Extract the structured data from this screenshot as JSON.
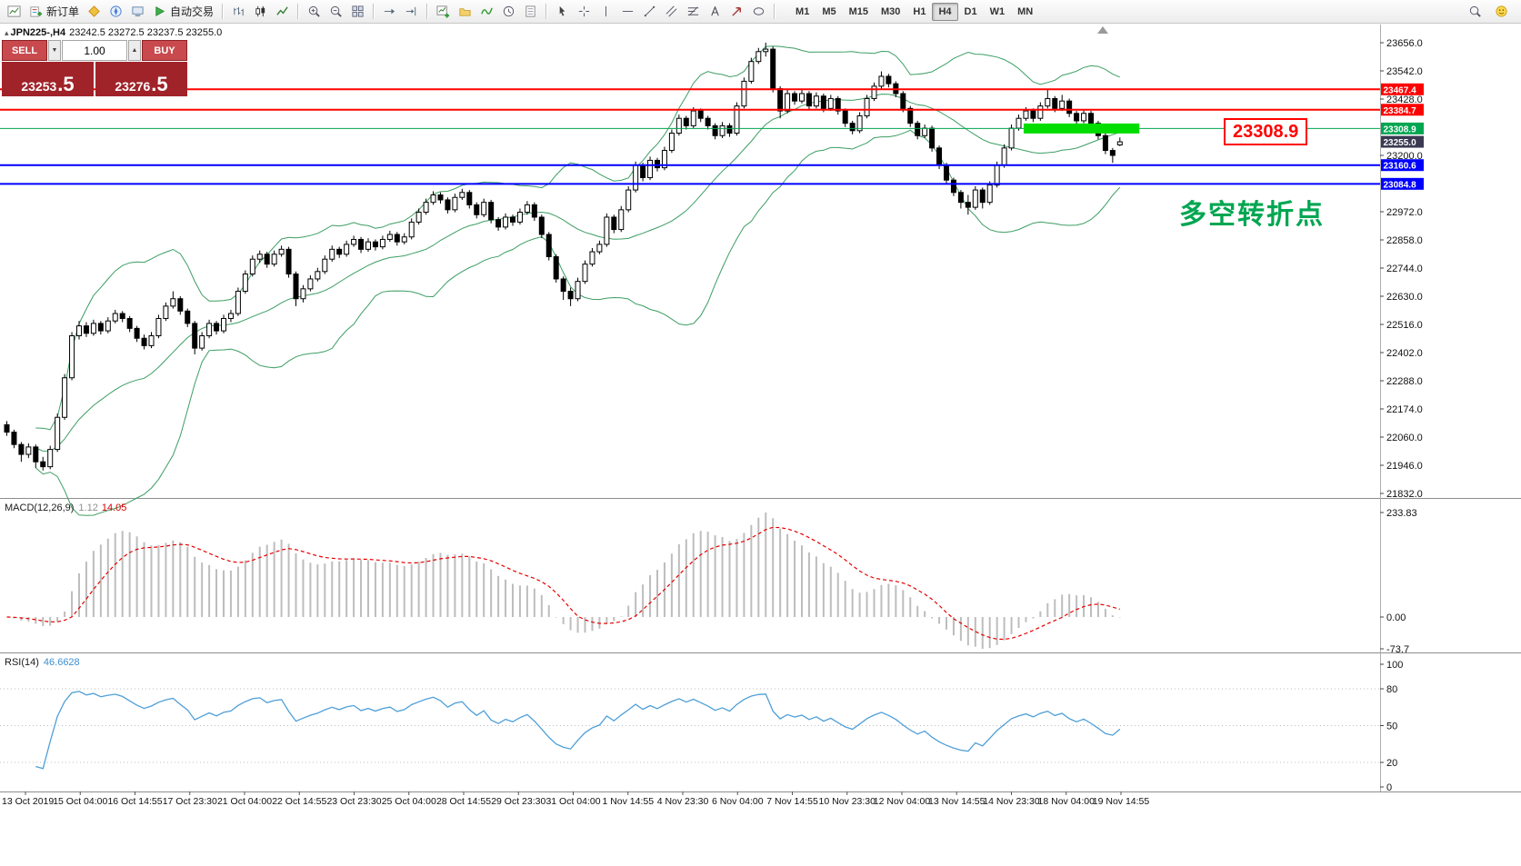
{
  "toolbar": {
    "new_order_label": "新订单",
    "autotrade_label": "自动交易",
    "timeframes": [
      "M1",
      "M5",
      "M15",
      "M30",
      "H1",
      "H4",
      "D1",
      "W1",
      "MN"
    ],
    "active_timeframe": "H4"
  },
  "chart_header": {
    "collapse_glyph": "▴",
    "symbol_title": "JPN225-,H4",
    "ohlc_text": "23242.5 23272.5 23237.5 23255.0"
  },
  "quote_panel": {
    "sell_label": "SELL",
    "buy_label": "BUY",
    "volume": "1.00",
    "spin_down_glyph": "▼",
    "spin_up_glyph": "▲",
    "sell_price_main": "23253",
    "sell_price_pips": ".5",
    "buy_price_main": "23276",
    "buy_price_pips": ".5"
  },
  "macd": {
    "label": "MACD(12,26,9)",
    "value_main": "1.12",
    "value_signal": "14.05",
    "axis_labels": [
      "233.83",
      "0.00",
      "-73.7"
    ],
    "fast": 12,
    "slow": 26,
    "smooth": 9
  },
  "rsi": {
    "label": "RSI(14)",
    "value": "46.6628",
    "axis_values": [
      100,
      80,
      50,
      20,
      0
    ],
    "axis_labels": [
      "100",
      "80",
      "50",
      "20",
      "0"
    ],
    "period": 14,
    "levels": [
      80,
      50,
      20
    ]
  },
  "annotations": {
    "price_callout": "23308.9",
    "note_text": "多空转折点",
    "note_color": "#00A651"
  },
  "colors": {
    "up_candle": "#ffffff",
    "down_candle": "#000000",
    "candle_outline": "#000000",
    "bollinger": "#3c9e63",
    "bid_tag_bg": "#3a3a52",
    "macd_hist": "#bdbdbd",
    "macd_signal": "#e60000",
    "rsi_line": "#4f9fd8",
    "highlight_band": "#00dd00",
    "button_red": "#c84a4e",
    "price_tile_red": "#a02329",
    "callout_red": "#ff0000"
  },
  "chart_data": {
    "type": "candlestick",
    "symbol": "JPN225-",
    "timeframe": "H4",
    "y_range": [
      21832.0,
      23656.0
    ],
    "y_axis_ticks": [
      23656.0,
      23542.0,
      23428.0,
      23200.0,
      22972.0,
      22858.0,
      22744.0,
      22630.0,
      22516.0,
      22402.0,
      22288.0,
      22174.0,
      22060.0,
      21946.0,
      21832.0
    ],
    "levels": [
      {
        "price": 23467.4,
        "color": "#ff0000",
        "width": 2,
        "kind": "resistance"
      },
      {
        "price": 23384.7,
        "color": "#ff0000",
        "width": 2,
        "kind": "resistance"
      },
      {
        "price": 23308.9,
        "color": "#00a651",
        "width": 1,
        "kind": "pivot"
      },
      {
        "price": 23160.6,
        "color": "#0000ff",
        "width": 2,
        "kind": "support"
      },
      {
        "price": 23084.8,
        "color": "#0000ff",
        "width": 2,
        "kind": "support"
      }
    ],
    "bid_price": 23255.0,
    "highlight_band": {
      "price": 23308.9,
      "start_index": 141,
      "end_index": 157
    },
    "bollinger": {
      "period": 20,
      "deviation": 2
    },
    "time_labels": [
      "13 Oct 2019",
      "15 Oct 04:00",
      "16 Oct 14:55",
      "17 Oct 23:30",
      "21 Oct 04:00",
      "22 Oct 14:55",
      "23 Oct 23:30",
      "25 Oct 04:00",
      "28 Oct 14:55",
      "29 Oct 23:30",
      "31 Oct 04:00",
      "1 Nov 14:55",
      "4 Nov 23:30",
      "6 Nov 04:00",
      "7 Nov 14:55",
      "10 Nov 23:30",
      "12 Nov 04:00",
      "13 Nov 14:55",
      "14 Nov 23:30",
      "18 Nov 04:00",
      "19 Nov 14:55"
    ],
    "ohlc": [
      [
        22110,
        22125,
        22065,
        22080
      ],
      [
        22080,
        22090,
        22015,
        22030
      ],
      [
        22030,
        22040,
        21960,
        21990
      ],
      [
        21990,
        22035,
        21975,
        22020
      ],
      [
        22020,
        22030,
        21935,
        21960
      ],
      [
        21960,
        21980,
        21925,
        21940
      ],
      [
        21940,
        22025,
        21930,
        22010
      ],
      [
        22010,
        22155,
        22000,
        22140
      ],
      [
        22140,
        22315,
        22130,
        22300
      ],
      [
        22300,
        22485,
        22290,
        22470
      ],
      [
        22470,
        22530,
        22455,
        22510
      ],
      [
        22510,
        22525,
        22465,
        22480
      ],
      [
        22480,
        22535,
        22470,
        22520
      ],
      [
        22520,
        22530,
        22475,
        22490
      ],
      [
        22490,
        22545,
        22480,
        22530
      ],
      [
        22530,
        22575,
        22520,
        22560
      ],
      [
        22560,
        22570,
        22525,
        22540
      ],
      [
        22540,
        22550,
        22485,
        22500
      ],
      [
        22500,
        22510,
        22445,
        22460
      ],
      [
        22460,
        22475,
        22415,
        22430
      ],
      [
        22430,
        22485,
        22420,
        22470
      ],
      [
        22470,
        22555,
        22460,
        22540
      ],
      [
        22540,
        22605,
        22530,
        22590
      ],
      [
        22590,
        22650,
        22580,
        22620
      ],
      [
        22620,
        22630,
        22555,
        22570
      ],
      [
        22570,
        22580,
        22505,
        22520
      ],
      [
        22520,
        22530,
        22395,
        22420
      ],
      [
        22420,
        22485,
        22410,
        22470
      ],
      [
        22470,
        22535,
        22460,
        22520
      ],
      [
        22520,
        22530,
        22475,
        22490
      ],
      [
        22490,
        22555,
        22480,
        22540
      ],
      [
        22540,
        22575,
        22525,
        22560
      ],
      [
        22560,
        22665,
        22550,
        22650
      ],
      [
        22650,
        22735,
        22640,
        22720
      ],
      [
        22720,
        22795,
        22710,
        22780
      ],
      [
        22780,
        22815,
        22765,
        22800
      ],
      [
        22800,
        22810,
        22745,
        22760
      ],
      [
        22760,
        22815,
        22750,
        22800
      ],
      [
        22800,
        22835,
        22790,
        22820
      ],
      [
        22820,
        22830,
        22705,
        22720
      ],
      [
        22720,
        22730,
        22590,
        22620
      ],
      [
        22620,
        22675,
        22605,
        22660
      ],
      [
        22660,
        22715,
        22650,
        22700
      ],
      [
        22700,
        22745,
        22690,
        22730
      ],
      [
        22730,
        22795,
        22720,
        22780
      ],
      [
        22780,
        22835,
        22770,
        22820
      ],
      [
        22820,
        22830,
        22785,
        22800
      ],
      [
        22800,
        22855,
        22790,
        22840
      ],
      [
        22840,
        22875,
        22830,
        22860
      ],
      [
        22860,
        22870,
        22805,
        22820
      ],
      [
        22820,
        22865,
        22810,
        22850
      ],
      [
        22850,
        22860,
        22815,
        22830
      ],
      [
        22830,
        22875,
        22820,
        22860
      ],
      [
        22860,
        22895,
        22850,
        22880
      ],
      [
        22880,
        22890,
        22835,
        22850
      ],
      [
        22850,
        22885,
        22840,
        22870
      ],
      [
        22870,
        22945,
        22860,
        22930
      ],
      [
        22930,
        22985,
        22920,
        22970
      ],
      [
        22970,
        23025,
        22960,
        23010
      ],
      [
        23010,
        23055,
        23000,
        23040
      ],
      [
        23040,
        23050,
        23005,
        23020
      ],
      [
        23020,
        23030,
        22965,
        22980
      ],
      [
        22980,
        23045,
        22970,
        23030
      ],
      [
        23030,
        23065,
        23020,
        23050
      ],
      [
        23050,
        23060,
        22985,
        23000
      ],
      [
        23000,
        23010,
        22945,
        22960
      ],
      [
        22960,
        23025,
        22950,
        23010
      ],
      [
        23010,
        23020,
        22925,
        22940
      ],
      [
        22940,
        22950,
        22895,
        22910
      ],
      [
        22910,
        22965,
        22900,
        22950
      ],
      [
        22950,
        22960,
        22915,
        22930
      ],
      [
        22930,
        22985,
        22920,
        22970
      ],
      [
        22970,
        23015,
        22960,
        23000
      ],
      [
        23000,
        23010,
        22935,
        22950
      ],
      [
        22950,
        22960,
        22865,
        22880
      ],
      [
        22880,
        22890,
        22775,
        22790
      ],
      [
        22790,
        22800,
        22685,
        22700
      ],
      [
        22700,
        22710,
        22615,
        22650
      ],
      [
        22650,
        22665,
        22590,
        22620
      ],
      [
        22620,
        22705,
        22610,
        22690
      ],
      [
        22690,
        22775,
        22680,
        22760
      ],
      [
        22760,
        22825,
        22750,
        22810
      ],
      [
        22810,
        22855,
        22800,
        22840
      ],
      [
        22840,
        22965,
        22830,
        22950
      ],
      [
        22950,
        22960,
        22885,
        22900
      ],
      [
        22900,
        22995,
        22890,
        22980
      ],
      [
        22980,
        23075,
        22970,
        23060
      ],
      [
        23060,
        23175,
        23050,
        23160
      ],
      [
        23160,
        23170,
        23095,
        23110
      ],
      [
        23110,
        23195,
        23100,
        23180
      ],
      [
        23180,
        23190,
        23135,
        23150
      ],
      [
        23150,
        23235,
        23140,
        23220
      ],
      [
        23220,
        23305,
        23210,
        23290
      ],
      [
        23290,
        23365,
        23280,
        23350
      ],
      [
        23350,
        23360,
        23305,
        23320
      ],
      [
        23320,
        23395,
        23310,
        23380
      ],
      [
        23380,
        23390,
        23335,
        23350
      ],
      [
        23350,
        23360,
        23305,
        23320
      ],
      [
        23320,
        23330,
        23265,
        23280
      ],
      [
        23280,
        23335,
        23270,
        23320
      ],
      [
        23320,
        23330,
        23275,
        23290
      ],
      [
        23290,
        23415,
        23280,
        23400
      ],
      [
        23400,
        23515,
        23390,
        23500
      ],
      [
        23500,
        23595,
        23490,
        23580
      ],
      [
        23580,
        23635,
        23570,
        23620
      ],
      [
        23620,
        23656,
        23600,
        23630
      ],
      [
        23630,
        23640,
        23455,
        23470
      ],
      [
        23470,
        23480,
        23350,
        23380
      ],
      [
        23380,
        23465,
        23370,
        23450
      ],
      [
        23450,
        23460,
        23405,
        23420
      ],
      [
        23420,
        23465,
        23410,
        23450
      ],
      [
        23450,
        23460,
        23385,
        23400
      ],
      [
        23400,
        23455,
        23390,
        23440
      ],
      [
        23440,
        23450,
        23375,
        23390
      ],
      [
        23390,
        23445,
        23380,
        23430
      ],
      [
        23430,
        23440,
        23365,
        23380
      ],
      [
        23380,
        23390,
        23315,
        23330
      ],
      [
        23330,
        23340,
        23285,
        23300
      ],
      [
        23300,
        23375,
        23290,
        23360
      ],
      [
        23360,
        23445,
        23350,
        23430
      ],
      [
        23430,
        23495,
        23420,
        23480
      ],
      [
        23480,
        23540,
        23470,
        23520
      ],
      [
        23520,
        23530,
        23475,
        23490
      ],
      [
        23490,
        23500,
        23435,
        23450
      ],
      [
        23450,
        23460,
        23375,
        23390
      ],
      [
        23390,
        23400,
        23315,
        23330
      ],
      [
        23330,
        23340,
        23265,
        23280
      ],
      [
        23280,
        23325,
        23270,
        23310
      ],
      [
        23310,
        23320,
        23215,
        23230
      ],
      [
        23230,
        23240,
        23145,
        23160
      ],
      [
        23160,
        23170,
        23085,
        23100
      ],
      [
        23100,
        23110,
        23035,
        23050
      ],
      [
        23050,
        23060,
        22985,
        23010
      ],
      [
        23010,
        23040,
        22960,
        22990
      ],
      [
        22990,
        23075,
        22980,
        23060
      ],
      [
        23060,
        23070,
        22985,
        23010
      ],
      [
        23010,
        23095,
        23000,
        23080
      ],
      [
        23080,
        23175,
        23070,
        23160
      ],
      [
        23160,
        23245,
        23150,
        23230
      ],
      [
        23230,
        23325,
        23220,
        23310
      ],
      [
        23310,
        23365,
        23300,
        23350
      ],
      [
        23350,
        23395,
        23340,
        23380
      ],
      [
        23380,
        23390,
        23335,
        23350
      ],
      [
        23350,
        23415,
        23340,
        23400
      ],
      [
        23400,
        23467,
        23390,
        23430
      ],
      [
        23430,
        23440,
        23375,
        23390
      ],
      [
        23390,
        23445,
        23380,
        23420
      ],
      [
        23420,
        23430,
        23355,
        23370
      ],
      [
        23370,
        23380,
        23325,
        23340
      ],
      [
        23340,
        23385,
        23330,
        23370
      ],
      [
        23370,
        23380,
        23315,
        23330
      ],
      [
        23330,
        23340,
        23265,
        23280
      ],
      [
        23280,
        23290,
        23205,
        23220
      ],
      [
        23220,
        23230,
        23170,
        23200
      ],
      [
        23242.5,
        23272.5,
        23237.5,
        23255.0
      ]
    ]
  }
}
